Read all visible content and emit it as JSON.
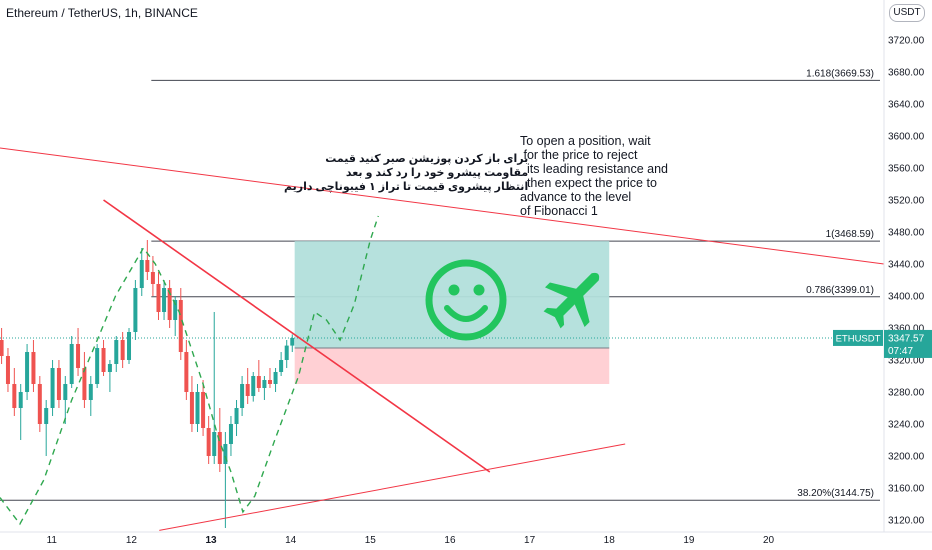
{
  "header": {
    "title": "Ethereum / TetherUS, 1h, BINANCE",
    "currency": "USDT"
  },
  "annotations": {
    "farsi_note": "برای باز کردن پوزیشن صبر کنید قیمت\nمقاومت پیشرو خود را رد کند و بعد\nانتظار پیشروی قیمت تا تراز ۱ فیبوناچی داریم",
    "english_note": "To open a position, wait\n for the price to reject\n  its leading resistance and\n  then expect the price to\nadvance to the level\nof Fibonacci 1"
  },
  "price_label": {
    "symbol": "ETHUSDT",
    "price": "3347.57",
    "countdown": "07:47",
    "value": 3347.57
  },
  "icons": {
    "smiley": "smiley-face-icon",
    "plane": "airplane-icon"
  },
  "colors": {
    "candle_up": "#26a69a",
    "candle_down": "#ef5350",
    "fib_line": "#434651",
    "trendline": "#f23645",
    "projection": "#2fa84f",
    "profit_zone": "#b2dfdb",
    "loss_zone": "#ffcdd2",
    "icon_green": "#22c55e",
    "price_label": "#26a69a"
  },
  "chart_data": {
    "type": "candlestick",
    "symbol": "ETHUSDT",
    "timeframe": "1h",
    "exchange": "BINANCE",
    "y_ticks": [
      3120,
      3160,
      3200,
      3240,
      3280,
      3320,
      3360,
      3400,
      3440,
      3480,
      3520,
      3560,
      3600,
      3640,
      3680,
      3720
    ],
    "y_tick_labels": [
      "3120.00",
      "3160.00",
      "3200.00",
      "3240.00",
      "3280.00",
      "3320.00",
      "3360.00",
      "3400.00",
      "3440.00",
      "3480.00",
      "3520.00",
      "3560.00",
      "3600.00",
      "3640.00",
      "3680.00",
      "3720.00"
    ],
    "ylim": [
      3105,
      3770
    ],
    "x_ticks": [
      11,
      12,
      13,
      14,
      15,
      16,
      17,
      18,
      19,
      20
    ],
    "x_tick_labels": [
      "11",
      "12",
      "13",
      "14",
      "15",
      "16",
      "17",
      "18",
      "19",
      "20"
    ],
    "xlim": [
      10.35,
      21.45
    ],
    "bold_x_tick": "13",
    "fib_levels": [
      {
        "label": "1.618(3669.53)",
        "value": 3669.53
      },
      {
        "label": "1(3468.59)",
        "value": 3468.59
      },
      {
        "label": "0.786(3399.01)",
        "value": 3399.01
      },
      {
        "label": "38.20%(3144.75)",
        "value": 3144.75
      }
    ],
    "current_price": 3347.57,
    "trendlines": [
      {
        "name": "upper-descending",
        "from": [
          10.35,
          3585
        ],
        "to": [
          21.45,
          3440
        ]
      },
      {
        "name": "steep-descending",
        "from": [
          11.65,
          3520
        ],
        "to": [
          16.5,
          3180
        ]
      },
      {
        "name": "lower-ascending",
        "from": [
          12.35,
          3107
        ],
        "to": [
          18.2,
          3215
        ]
      }
    ],
    "position": {
      "x_from": 14.05,
      "x_to": 18.0,
      "entry": 3335,
      "target": 3468.59,
      "stop": 3290
    },
    "projection_path": [
      [
        10.35,
        3148
      ],
      [
        10.6,
        3115
      ],
      [
        10.9,
        3170
      ],
      [
        11.25,
        3270
      ],
      [
        11.55,
        3340
      ],
      [
        11.8,
        3400
      ],
      [
        12.15,
        3460
      ],
      [
        12.3,
        3440
      ],
      [
        12.6,
        3380
      ],
      [
        12.9,
        3290
      ],
      [
        13.1,
        3220
      ],
      [
        13.25,
        3180
      ],
      [
        13.4,
        3130
      ],
      [
        13.55,
        3150
      ],
      [
        13.8,
        3220
      ],
      [
        14.1,
        3300
      ],
      [
        14.3,
        3380
      ],
      [
        14.45,
        3370
      ],
      [
        14.62,
        3345
      ],
      [
        14.8,
        3390
      ],
      [
        15.0,
        3470
      ],
      [
        15.1,
        3500
      ]
    ],
    "candles": [
      {
        "x": 10.37,
        "o": 3345,
        "h": 3360,
        "l": 3315,
        "c": 3325
      },
      {
        "x": 10.45,
        "o": 3325,
        "h": 3335,
        "l": 3280,
        "c": 3290
      },
      {
        "x": 10.53,
        "o": 3290,
        "h": 3310,
        "l": 3250,
        "c": 3260
      },
      {
        "x": 10.61,
        "o": 3260,
        "h": 3290,
        "l": 3220,
        "c": 3280
      },
      {
        "x": 10.69,
        "o": 3280,
        "h": 3340,
        "l": 3270,
        "c": 3330
      },
      {
        "x": 10.77,
        "o": 3330,
        "h": 3345,
        "l": 3280,
        "c": 3290
      },
      {
        "x": 10.85,
        "o": 3290,
        "h": 3300,
        "l": 3230,
        "c": 3240
      },
      {
        "x": 10.93,
        "o": 3240,
        "h": 3270,
        "l": 3200,
        "c": 3260
      },
      {
        "x": 11.01,
        "o": 3260,
        "h": 3320,
        "l": 3250,
        "c": 3310
      },
      {
        "x": 11.09,
        "o": 3310,
        "h": 3320,
        "l": 3260,
        "c": 3270
      },
      {
        "x": 11.17,
        "o": 3270,
        "h": 3300,
        "l": 3240,
        "c": 3290
      },
      {
        "x": 11.25,
        "o": 3290,
        "h": 3350,
        "l": 3285,
        "c": 3340
      },
      {
        "x": 11.33,
        "o": 3340,
        "h": 3360,
        "l": 3300,
        "c": 3310
      },
      {
        "x": 11.41,
        "o": 3310,
        "h": 3330,
        "l": 3260,
        "c": 3270
      },
      {
        "x": 11.49,
        "o": 3270,
        "h": 3300,
        "l": 3250,
        "c": 3290
      },
      {
        "x": 11.57,
        "o": 3290,
        "h": 3340,
        "l": 3285,
        "c": 3335
      },
      {
        "x": 11.65,
        "o": 3335,
        "h": 3345,
        "l": 3300,
        "c": 3305
      },
      {
        "x": 11.73,
        "o": 3305,
        "h": 3320,
        "l": 3280,
        "c": 3315
      },
      {
        "x": 11.81,
        "o": 3315,
        "h": 3350,
        "l": 3305,
        "c": 3345
      },
      {
        "x": 11.89,
        "o": 3345,
        "h": 3355,
        "l": 3310,
        "c": 3320
      },
      {
        "x": 11.97,
        "o": 3320,
        "h": 3360,
        "l": 3315,
        "c": 3355
      },
      {
        "x": 12.05,
        "o": 3355,
        "h": 3420,
        "l": 3345,
        "c": 3410
      },
      {
        "x": 12.13,
        "o": 3410,
        "h": 3460,
        "l": 3400,
        "c": 3445
      },
      {
        "x": 12.2,
        "o": 3445,
        "h": 3470,
        "l": 3420,
        "c": 3430
      },
      {
        "x": 12.27,
        "o": 3430,
        "h": 3450,
        "l": 3400,
        "c": 3415
      },
      {
        "x": 12.34,
        "o": 3415,
        "h": 3430,
        "l": 3370,
        "c": 3380
      },
      {
        "x": 12.41,
        "o": 3380,
        "h": 3420,
        "l": 3370,
        "c": 3410
      },
      {
        "x": 12.48,
        "o": 3410,
        "h": 3420,
        "l": 3360,
        "c": 3370
      },
      {
        "x": 12.55,
        "o": 3370,
        "h": 3400,
        "l": 3350,
        "c": 3395
      },
      {
        "x": 12.62,
        "o": 3395,
        "h": 3410,
        "l": 3320,
        "c": 3330
      },
      {
        "x": 12.69,
        "o": 3330,
        "h": 3345,
        "l": 3270,
        "c": 3280
      },
      {
        "x": 12.76,
        "o": 3280,
        "h": 3300,
        "l": 3230,
        "c": 3240
      },
      {
        "x": 12.83,
        "o": 3240,
        "h": 3290,
        "l": 3230,
        "c": 3280
      },
      {
        "x": 12.9,
        "o": 3280,
        "h": 3295,
        "l": 3225,
        "c": 3235
      },
      {
        "x": 12.97,
        "o": 3235,
        "h": 3250,
        "l": 3190,
        "c": 3200
      },
      {
        "x": 13.04,
        "o": 3200,
        "h": 3380,
        "l": 3190,
        "c": 3230
      },
      {
        "x": 13.11,
        "o": 3230,
        "h": 3260,
        "l": 3180,
        "c": 3190
      },
      {
        "x": 13.18,
        "o": 3190,
        "h": 3230,
        "l": 3110,
        "c": 3215
      },
      {
        "x": 13.25,
        "o": 3215,
        "h": 3250,
        "l": 3200,
        "c": 3240
      },
      {
        "x": 13.32,
        "o": 3240,
        "h": 3270,
        "l": 3225,
        "c": 3260
      },
      {
        "x": 13.39,
        "o": 3260,
        "h": 3300,
        "l": 3250,
        "c": 3290
      },
      {
        "x": 13.46,
        "o": 3290,
        "h": 3310,
        "l": 3265,
        "c": 3275
      },
      {
        "x": 13.53,
        "o": 3275,
        "h": 3305,
        "l": 3268,
        "c": 3300
      },
      {
        "x": 13.6,
        "o": 3300,
        "h": 3320,
        "l": 3280,
        "c": 3285
      },
      {
        "x": 13.67,
        "o": 3285,
        "h": 3300,
        "l": 3270,
        "c": 3295
      },
      {
        "x": 13.74,
        "o": 3295,
        "h": 3310,
        "l": 3285,
        "c": 3290
      },
      {
        "x": 13.81,
        "o": 3290,
        "h": 3310,
        "l": 3280,
        "c": 3305
      },
      {
        "x": 13.88,
        "o": 3305,
        "h": 3330,
        "l": 3300,
        "c": 3320
      },
      {
        "x": 13.95,
        "o": 3320,
        "h": 3345,
        "l": 3310,
        "c": 3338
      },
      {
        "x": 14.02,
        "o": 3338,
        "h": 3352,
        "l": 3330,
        "c": 3347.57
      }
    ]
  }
}
